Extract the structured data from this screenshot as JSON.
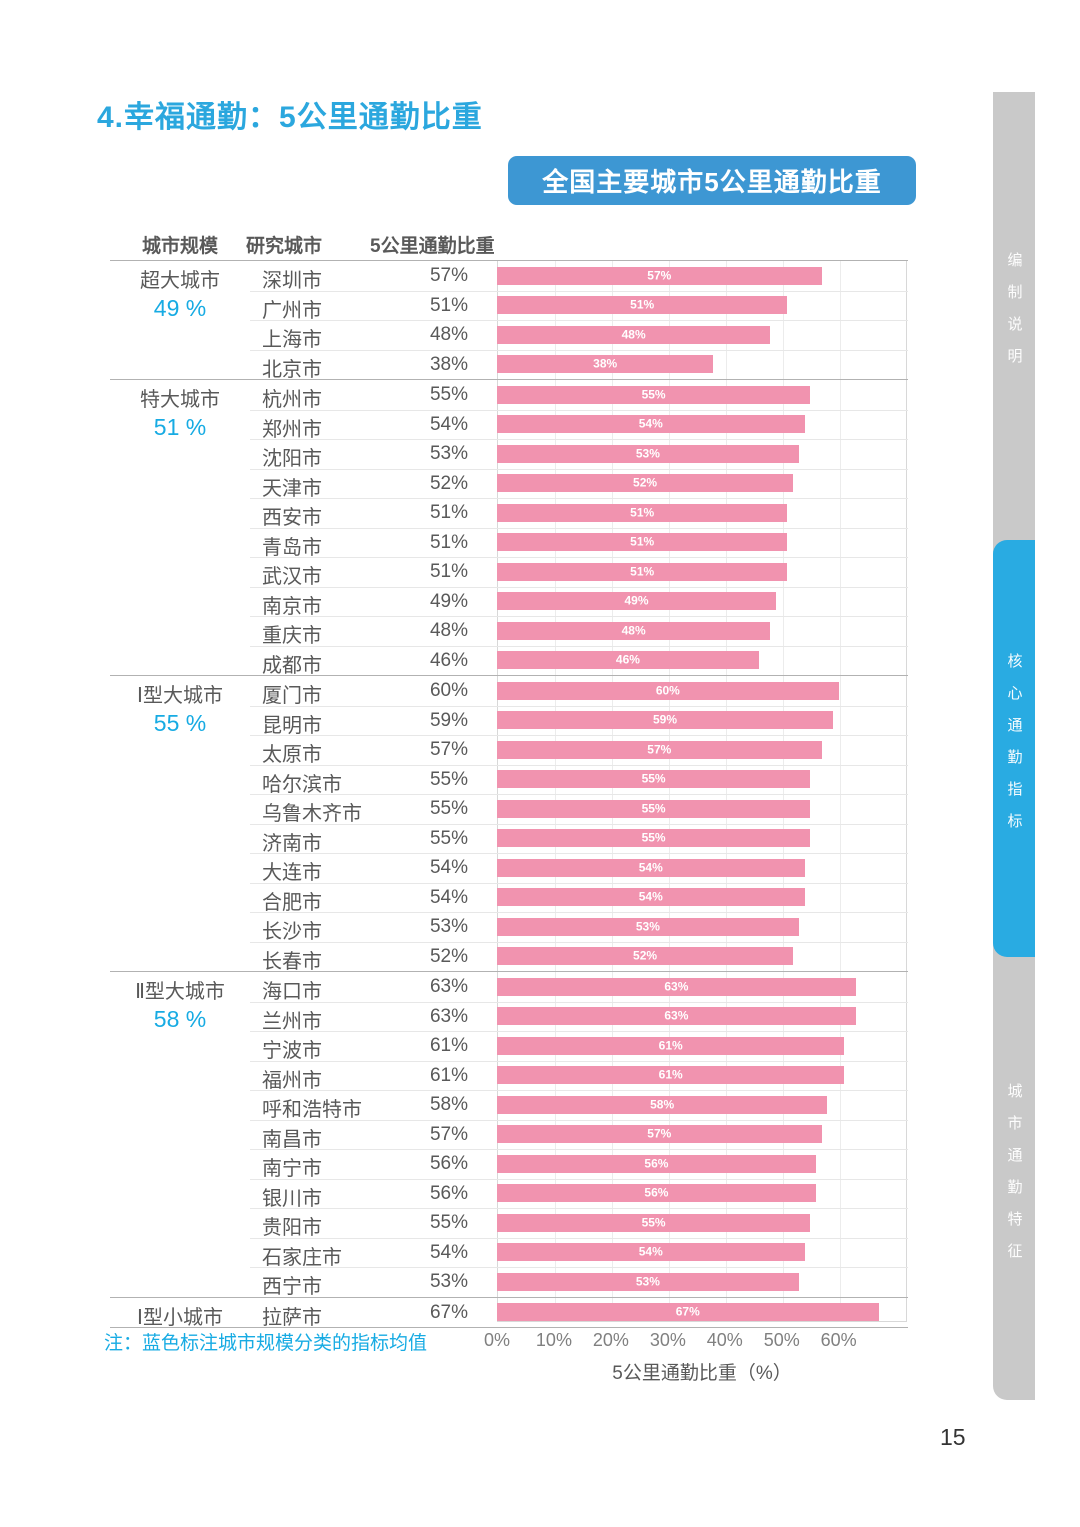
{
  "page": {
    "title": "4.幸福通勤：5公里通勤比重",
    "note": "注：蓝色标注城市规模分类的指标均值",
    "page_number": "15"
  },
  "sidebar": {
    "tabs": [
      {
        "label": "编制说明",
        "active": false
      },
      {
        "label": "核心通勤指标",
        "active": true
      },
      {
        "label": "城市通勤特征",
        "active": false
      }
    ]
  },
  "table": {
    "headers": [
      "城市规模",
      "研究城市",
      "5公里通勤比重"
    ]
  },
  "chart_data": {
    "type": "bar",
    "title": "全国主要城市5公里通勤比重",
    "xlabel": "5公里通勤比重（%）",
    "x_ticks": [
      "0%",
      "10%",
      "20%",
      "30%",
      "40%",
      "50%",
      "60%"
    ],
    "xlim": [
      0,
      72
    ],
    "grid": true,
    "bar_color": "#F193AF",
    "bar_label_color": "#ffffff",
    "groups": [
      {
        "name": "超大城市",
        "average": "49 %",
        "cities": [
          {
            "city": "深圳市",
            "value": 57
          },
          {
            "city": "广州市",
            "value": 51
          },
          {
            "city": "上海市",
            "value": 48
          },
          {
            "city": "北京市",
            "value": 38
          }
        ]
      },
      {
        "name": "特大城市",
        "average": "51 %",
        "cities": [
          {
            "city": "杭州市",
            "value": 55
          },
          {
            "city": "郑州市",
            "value": 54
          },
          {
            "city": "沈阳市",
            "value": 53
          },
          {
            "city": "天津市",
            "value": 52
          },
          {
            "city": "西安市",
            "value": 51
          },
          {
            "city": "青岛市",
            "value": 51
          },
          {
            "city": "武汉市",
            "value": 51
          },
          {
            "city": "南京市",
            "value": 49
          },
          {
            "city": "重庆市",
            "value": 48
          },
          {
            "city": "成都市",
            "value": 46
          }
        ]
      },
      {
        "name": "Ⅰ型大城市",
        "average": "55 %",
        "cities": [
          {
            "city": "厦门市",
            "value": 60
          },
          {
            "city": "昆明市",
            "value": 59
          },
          {
            "city": "太原市",
            "value": 57
          },
          {
            "city": "哈尔滨市",
            "value": 55
          },
          {
            "city": "乌鲁木齐市",
            "value": 55
          },
          {
            "city": "济南市",
            "value": 55
          },
          {
            "city": "大连市",
            "value": 54
          },
          {
            "city": "合肥市",
            "value": 54
          },
          {
            "city": "长沙市",
            "value": 53
          },
          {
            "city": "长春市",
            "value": 52
          }
        ]
      },
      {
        "name": "Ⅱ型大城市",
        "average": "58 %",
        "cities": [
          {
            "city": "海口市",
            "value": 63
          },
          {
            "city": "兰州市",
            "value": 63
          },
          {
            "city": "宁波市",
            "value": 61
          },
          {
            "city": "福州市",
            "value": 61
          },
          {
            "city": "呼和浩特市",
            "value": 58
          },
          {
            "city": "南昌市",
            "value": 57
          },
          {
            "city": "南宁市",
            "value": 56
          },
          {
            "city": "银川市",
            "value": 56
          },
          {
            "city": "贵阳市",
            "value": 55
          },
          {
            "city": "石家庄市",
            "value": 54
          },
          {
            "city": "西宁市",
            "value": 53
          }
        ]
      },
      {
        "name": "Ⅰ型小城市",
        "average": null,
        "cities": [
          {
            "city": "拉萨市",
            "value": 67
          }
        ]
      }
    ]
  },
  "colors": {
    "title_blue": "#2BA7DE",
    "banner_blue": "#3D97D3",
    "average_blue": "#17ABE3",
    "bar_pink": "#F193AF",
    "text_gray": "#595959",
    "sidebar_gray": "#c9c9c9",
    "sidebar_active_blue": "#29ABE2"
  }
}
